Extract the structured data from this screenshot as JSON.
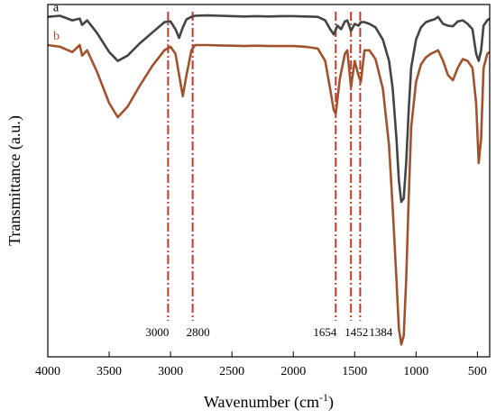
{
  "chart_data": {
    "type": "line",
    "xlabel": "Wavenumber (cm-1)",
    "xlabel_parts": {
      "main": "Wavenumber (cm",
      "sup": "-1",
      "close": ")"
    },
    "ylabel": "Transmittance (a.u.)",
    "xlim": [
      4000,
      400
    ],
    "x_reversed": true,
    "ylim": [
      0,
      100
    ],
    "yticks_shown": false,
    "grid": false,
    "legend": "none",
    "xticks": [
      4000,
      3500,
      3000,
      2500,
      2000,
      1500,
      1000,
      500
    ],
    "xtick_labels": [
      "4000",
      "3500",
      "3000",
      "2500",
      "2000",
      "1500",
      "1000",
      "500"
    ],
    "annotations": [
      {
        "x": 3020,
        "label": "3000"
      },
      {
        "x": 2820,
        "label": "2800"
      },
      {
        "x": 1654,
        "label": "1654"
      },
      {
        "x": 1530,
        "label": "1452"
      },
      {
        "x": 1455,
        "label": "1384"
      }
    ],
    "annotation_color": "#c0392b",
    "series": [
      {
        "name": "a",
        "color": "#444444",
        "x": [
          4000,
          3900,
          3800,
          3740,
          3720,
          3680,
          3600,
          3500,
          3430,
          3350,
          3250,
          3150,
          3050,
          3000,
          2960,
          2930,
          2900,
          2870,
          2830,
          2800,
          2700,
          2600,
          2500,
          2400,
          2300,
          2200,
          2100,
          2000,
          1900,
          1800,
          1740,
          1700,
          1670,
          1640,
          1610,
          1580,
          1560,
          1530,
          1500,
          1470,
          1450,
          1420,
          1380,
          1330,
          1270,
          1220,
          1190,
          1160,
          1140,
          1120,
          1100,
          1080,
          1060,
          1040,
          1000,
          960,
          920,
          880,
          850,
          820,
          780,
          740,
          700,
          660,
          620,
          580,
          540,
          510,
          490,
          470,
          450,
          420,
          400
        ],
        "y": [
          96.5,
          96.8,
          95.5,
          96.0,
          94.2,
          95.5,
          92.0,
          86.5,
          84.0,
          85.5,
          89.0,
          92.0,
          95.0,
          95.2,
          93.0,
          90.5,
          93.5,
          95.8,
          96.5,
          96.8,
          96.9,
          96.8,
          96.7,
          96.6,
          96.7,
          96.6,
          96.7,
          96.7,
          96.6,
          96.5,
          95.5,
          93.0,
          91.5,
          94.0,
          93.0,
          95.2,
          95.5,
          92.5,
          94.5,
          94.0,
          95.0,
          95.0,
          94.5,
          93.5,
          90.0,
          84.0,
          76.0,
          62.0,
          50.0,
          44.0,
          45.0,
          55.0,
          70.0,
          82.0,
          90.0,
          93.5,
          95.0,
          95.5,
          95.8,
          96.5,
          94.5,
          94.0,
          93.8,
          95.2,
          95.5,
          94.5,
          93.0,
          86.0,
          84.0,
          87.0,
          94.0,
          95.5,
          96.0
        ]
      },
      {
        "name": "b",
        "color": "#a0522d",
        "x": [
          4000,
          3900,
          3800,
          3740,
          3720,
          3680,
          3600,
          3500,
          3430,
          3350,
          3250,
          3150,
          3050,
          3000,
          2960,
          2930,
          2900,
          2870,
          2830,
          2800,
          2700,
          2600,
          2500,
          2400,
          2300,
          2200,
          2100,
          2000,
          1900,
          1800,
          1740,
          1700,
          1670,
          1654,
          1620,
          1580,
          1560,
          1530,
          1500,
          1470,
          1450,
          1420,
          1380,
          1330,
          1270,
          1220,
          1190,
          1160,
          1140,
          1120,
          1100,
          1080,
          1060,
          1040,
          1000,
          960,
          920,
          880,
          850,
          820,
          780,
          740,
          700,
          660,
          620,
          580,
          540,
          510,
          490,
          470,
          450,
          420,
          400
        ],
        "y": [
          88.5,
          88.0,
          86.5,
          88.5,
          85.5,
          87.0,
          81.0,
          72.0,
          68.0,
          71.0,
          77.0,
          82.5,
          87.0,
          88.0,
          86.0,
          80.0,
          74.0,
          80.0,
          87.0,
          88.5,
          88.5,
          88.4,
          88.3,
          88.2,
          88.3,
          88.2,
          88.2,
          88.2,
          88.0,
          87.5,
          84.0,
          76.0,
          70.0,
          69.0,
          79.0,
          86.0,
          87.0,
          76.5,
          84.0,
          80.0,
          78.0,
          87.0,
          87.0,
          84.5,
          76.0,
          60.0,
          42.0,
          22.0,
          8.0,
          3.5,
          6.0,
          22.0,
          45.0,
          65.0,
          78.0,
          83.0,
          85.0,
          86.0,
          86.5,
          87.0,
          84.0,
          80.0,
          78.5,
          82.0,
          84.5,
          84.0,
          82.0,
          72.0,
          55.0,
          62.0,
          82.0,
          86.0,
          86.5
        ]
      }
    ]
  }
}
